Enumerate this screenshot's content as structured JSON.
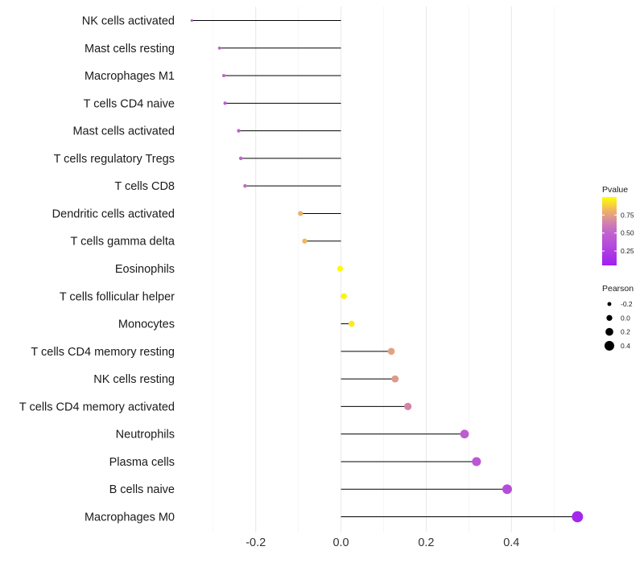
{
  "chart_data": {
    "type": "lollipop",
    "title": "",
    "xlabel": "",
    "ylabel": "",
    "xlim": [
      -0.36,
      0.56
    ],
    "x_ticks": [
      -0.2,
      0.0,
      0.2,
      0.4
    ],
    "x_tick_labels": [
      "-0.2",
      "0.0",
      "0.2",
      "0.4"
    ],
    "grid": true,
    "categories": [
      "NK cells activated",
      "Mast cells resting",
      "Macrophages M1",
      "T cells CD4 naive",
      "Mast cells activated",
      "T cells regulatory  Tregs ",
      "T cells CD8",
      "Dendritic cells activated",
      "T cells gamma delta",
      "Eosinophils",
      "T cells follicular helper",
      "Monocytes",
      "T cells CD4 memory resting",
      "NK cells resting",
      "T cells CD4 memory activated",
      "Neutrophils",
      "Plasma cells",
      "B cells naive",
      "Macrophages M0"
    ],
    "pearson": [
      -0.35,
      -0.285,
      -0.275,
      -0.272,
      -0.24,
      -0.235,
      -0.225,
      -0.095,
      -0.085,
      -0.002,
      0.007,
      0.025,
      0.118,
      0.127,
      0.157,
      0.29,
      0.318,
      0.39,
      0.555
    ],
    "pvalue": [
      0.4,
      0.5,
      0.5,
      0.45,
      0.5,
      0.5,
      0.55,
      0.8,
      0.82,
      0.99,
      0.97,
      0.95,
      0.75,
      0.72,
      0.65,
      0.45,
      0.42,
      0.35,
      0.1
    ],
    "legend": {
      "color_title": "Pvalue",
      "color_ticks": [
        0.25,
        0.5,
        0.75
      ],
      "color_tick_labels": [
        "0.25",
        "0.50",
        "0.75"
      ],
      "color_range": [
        0.05,
        1.0
      ],
      "color_low": "#A020F0",
      "color_high": "#FFFF00",
      "size_title": "Pearson",
      "size_values": [
        -0.2,
        0.0,
        0.2,
        0.4
      ],
      "size_labels": [
        "-0.2",
        "0.0",
        "0.2",
        "0.4"
      ],
      "position": "right"
    }
  }
}
